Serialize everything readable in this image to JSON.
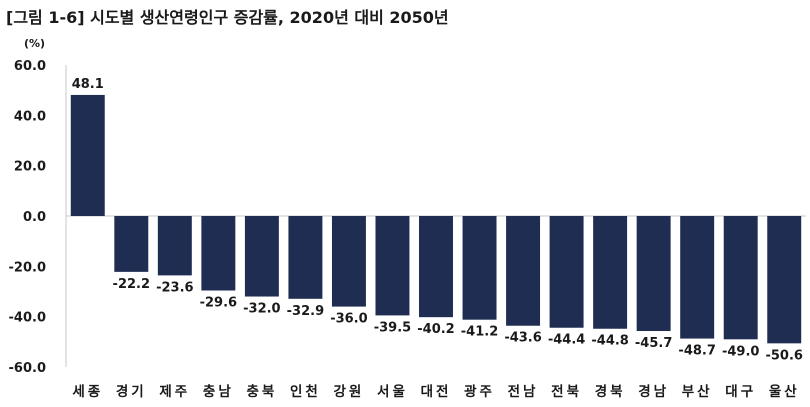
{
  "chart_data": {
    "type": "bar",
    "title": "[그림 1-6] 시도별 생산연령인구 증감률, 2020년 대비 2050년",
    "unit_label": "(%)",
    "categories": [
      "세종",
      "경기",
      "제주",
      "충남",
      "충북",
      "인천",
      "강원",
      "서울",
      "대전",
      "광주",
      "전남",
      "전북",
      "경북",
      "경남",
      "부산",
      "대구",
      "울산"
    ],
    "values": [
      48.1,
      -22.2,
      -23.6,
      -29.6,
      -32.0,
      -32.9,
      -36.0,
      -39.5,
      -40.2,
      -41.2,
      -43.6,
      -44.4,
      -44.8,
      -45.7,
      -48.7,
      -49.0,
      -50.6
    ],
    "data_labels": [
      "48.1",
      "-22.2",
      "-23.6",
      "-29.6",
      "-32.0",
      "-32.9",
      "-36.0",
      "-39.5",
      "-40.2",
      "-41.2",
      "-43.6",
      "-44.4",
      "-44.8",
      "-45.7",
      "-48.7",
      "-49.0",
      "-50.6"
    ],
    "y_ticks": [
      60,
      40,
      20,
      0,
      -20,
      -40,
      -60
    ],
    "y_tick_labels": [
      "60.0",
      "40.0",
      "20.0",
      "0.0",
      "-20.0",
      "-40.0",
      "-60.0"
    ],
    "ylim": [
      -60,
      60
    ],
    "grid": false,
    "legend": "none",
    "bar_color": "#1f2d52",
    "axis_color": "#c8c8c8"
  }
}
